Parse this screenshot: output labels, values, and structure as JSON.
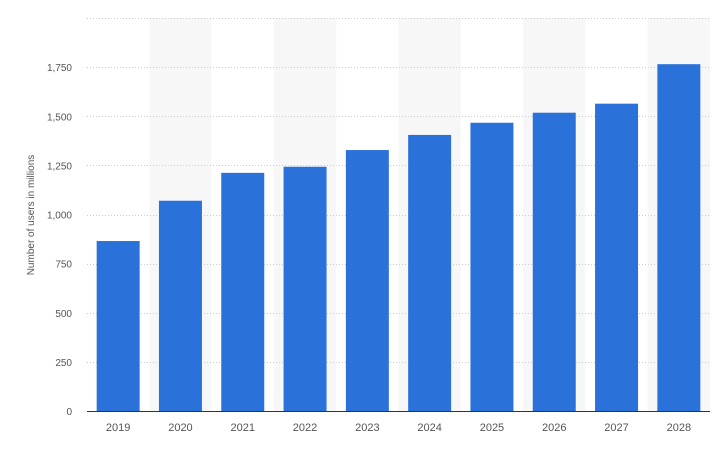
{
  "chart_data": {
    "type": "bar",
    "categories": [
      "2019",
      "2020",
      "2021",
      "2022",
      "2023",
      "2024",
      "2025",
      "2026",
      "2027",
      "2028"
    ],
    "values": [
      865,
      1070,
      1212,
      1243,
      1328,
      1405,
      1467,
      1518,
      1564,
      1765
    ],
    "xlabel": "",
    "ylabel": "Number of users in millions",
    "ylim": [
      0,
      2000
    ],
    "yticks": [
      0,
      250,
      500,
      750,
      1000,
      1250,
      1500,
      1750
    ],
    "ytick_labels": [
      "0",
      "250",
      "500",
      "750",
      "1,000",
      "1,250",
      "1,500",
      "1,750"
    ],
    "grid": true,
    "alternating_column_shading": true,
    "colors": {
      "bar": "#2a72d9",
      "band": "#f7f7f7",
      "grid": "#cccccc",
      "axis": "#333333",
      "text": "#555555"
    }
  }
}
